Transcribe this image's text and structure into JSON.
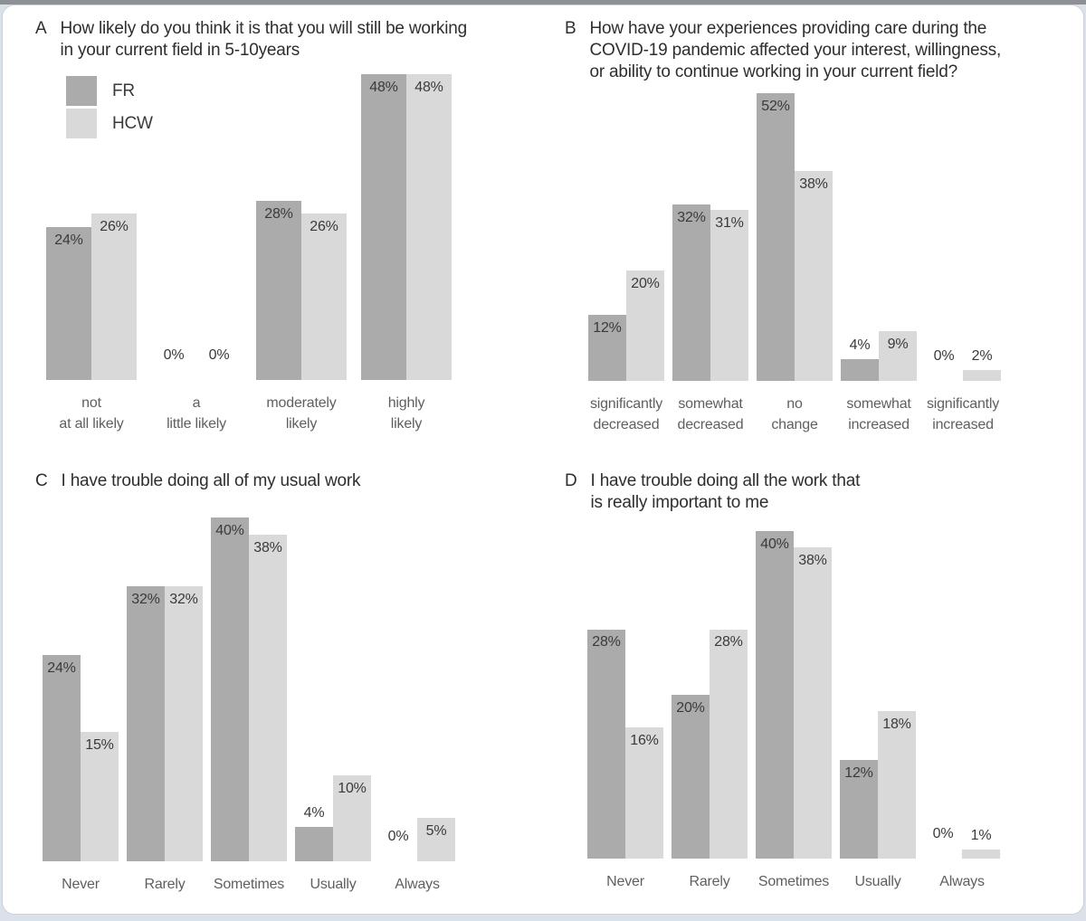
{
  "window": {
    "top_strip_color": "#8d9094",
    "page_background": "#dbe1ea",
    "card_background": "#ffffff",
    "card_border": "#cdd0d4"
  },
  "colors": {
    "fr": "#ababab",
    "hcw": "#d9d9d9",
    "title_text": "#2e2e2e",
    "value_text": "#3a3a3a",
    "category_text": "#5f5f5f"
  },
  "legend": {
    "position": "top-left-of-panel-A",
    "items": [
      {
        "key": "fr",
        "label": "FR"
      },
      {
        "key": "hcw",
        "label": "HCW"
      }
    ]
  },
  "chart_data": [
    {
      "type": "bar",
      "panel_label": "A",
      "title": "How likely do you think it is that you will still be working\nin your current field in 5-10years",
      "categories": [
        "not\nat all likely",
        "a\nlittle likely",
        "moderately\nlikely",
        "highly\nlikely"
      ],
      "series": [
        {
          "name": "FR",
          "values": [
            24,
            0,
            28,
            48
          ]
        },
        {
          "name": "HCW",
          "values": [
            26,
            0,
            26,
            48
          ]
        }
      ],
      "value_suffix": "%",
      "ylim": [
        0,
        50
      ],
      "grid": false,
      "axes_drawn": false,
      "legend_position": "top-left"
    },
    {
      "type": "bar",
      "panel_label": "B",
      "title": "How have your experiences providing care during the\nCOVID-19 pandemic affected your interest, willingness,\nor ability to continue working in your current field?",
      "categories": [
        "significantly\ndecreased",
        "somewhat\ndecreased",
        "no\nchange",
        "somewhat\nincreased",
        "significantly\nincreased"
      ],
      "series": [
        {
          "name": "FR",
          "values": [
            12,
            32,
            52,
            4,
            0
          ]
        },
        {
          "name": "HCW",
          "values": [
            20,
            31,
            38,
            9,
            2
          ]
        }
      ],
      "value_suffix": "%",
      "ylim": [
        0,
        54
      ],
      "grid": false,
      "axes_drawn": false,
      "legend_position": "none"
    },
    {
      "type": "bar",
      "panel_label": "C",
      "title": "I have trouble doing all of my usual work",
      "categories": [
        "Never",
        "Rarely",
        "Sometimes",
        "Usually",
        "Always"
      ],
      "series": [
        {
          "name": "FR",
          "values": [
            24,
            32,
            40,
            4,
            0
          ]
        },
        {
          "name": "HCW",
          "values": [
            15,
            32,
            38,
            10,
            5
          ]
        }
      ],
      "value_suffix": "%",
      "ylim": [
        0,
        41.5
      ],
      "grid": false,
      "axes_drawn": false,
      "legend_position": "none"
    },
    {
      "type": "bar",
      "panel_label": "D",
      "title": "I have trouble doing all the work that\nis really important to me",
      "categories": [
        "Never",
        "Rarely",
        "Sometimes",
        "Usually",
        "Always"
      ],
      "series": [
        {
          "name": "FR",
          "values": [
            28,
            20,
            40,
            12,
            0
          ]
        },
        {
          "name": "HCW",
          "values": [
            16,
            28,
            38,
            18,
            1
          ]
        }
      ],
      "value_suffix": "%",
      "ylim": [
        0,
        41.5
      ],
      "grid": false,
      "axes_drawn": false,
      "legend_position": "none"
    }
  ]
}
